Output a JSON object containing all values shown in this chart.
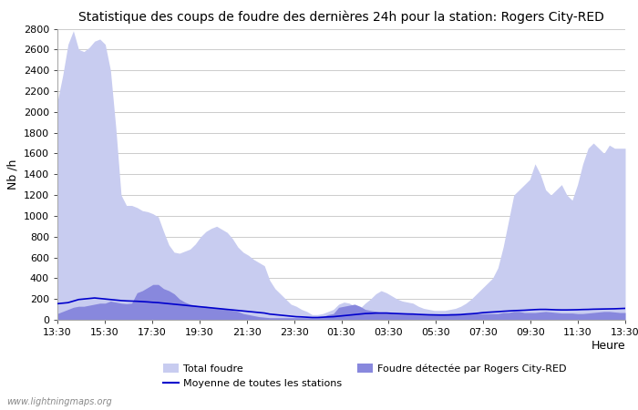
{
  "title": "Statistique des coups de foudre des dernières 24h pour la station: Rogers City-RED",
  "xlabel": "Heure",
  "ylabel": "Nb /h",
  "watermark": "www.lightningmaps.org",
  "ylim": [
    0,
    2800
  ],
  "yticks": [
    0,
    200,
    400,
    600,
    800,
    1000,
    1200,
    1400,
    1600,
    1800,
    2000,
    2200,
    2400,
    2600,
    2800
  ],
  "xtick_labels": [
    "13:30",
    "15:30",
    "17:30",
    "19:30",
    "21:30",
    "23:30",
    "01:30",
    "03:30",
    "05:30",
    "07:30",
    "09:30",
    "11:30",
    "13:30"
  ],
  "color_total": "#c8ccf0",
  "color_local": "#8888dd",
  "color_mean": "#0000cc",
  "total_foudre": [
    2100,
    2350,
    2650,
    2780,
    2600,
    2580,
    2620,
    2680,
    2700,
    2650,
    2400,
    1850,
    1200,
    1100,
    1100,
    1080,
    1050,
    1040,
    1020,
    990,
    850,
    720,
    650,
    640,
    660,
    680,
    730,
    800,
    850,
    880,
    900,
    870,
    840,
    780,
    700,
    650,
    620,
    580,
    550,
    520,
    380,
    300,
    250,
    200,
    150,
    130,
    100,
    80,
    50,
    50,
    60,
    80,
    100,
    150,
    170,
    160,
    130,
    110,
    160,
    200,
    250,
    280,
    260,
    230,
    200,
    180,
    170,
    160,
    130,
    110,
    100,
    90,
    90,
    90,
    100,
    110,
    130,
    160,
    200,
    250,
    300,
    350,
    400,
    500,
    700,
    950,
    1200,
    1250,
    1300,
    1350,
    1500,
    1400,
    1250,
    1200,
    1250,
    1300,
    1200,
    1150,
    1300,
    1500,
    1650,
    1700,
    1650,
    1600,
    1680,
    1650,
    1650,
    1650
  ],
  "local_foudre": [
    60,
    80,
    100,
    120,
    130,
    130,
    140,
    150,
    160,
    160,
    180,
    170,
    160,
    155,
    160,
    260,
    280,
    310,
    340,
    340,
    300,
    280,
    250,
    200,
    170,
    150,
    140,
    130,
    130,
    120,
    115,
    110,
    100,
    90,
    80,
    60,
    50,
    40,
    30,
    25,
    20,
    20,
    20,
    20,
    20,
    20,
    20,
    20,
    20,
    20,
    30,
    50,
    60,
    120,
    130,
    140,
    150,
    130,
    100,
    90,
    80,
    70,
    65,
    65,
    60,
    60,
    60,
    55,
    50,
    50,
    50,
    50,
    50,
    50,
    60,
    60,
    60,
    60,
    60,
    60,
    60,
    60,
    60,
    60,
    70,
    70,
    80,
    80,
    70,
    70,
    70,
    75,
    80,
    75,
    70,
    65,
    65,
    65,
    60,
    60,
    65,
    70,
    75,
    80,
    80,
    75,
    70,
    70
  ],
  "mean_line": [
    155,
    160,
    165,
    180,
    195,
    200,
    205,
    210,
    205,
    200,
    195,
    190,
    185,
    182,
    180,
    178,
    175,
    172,
    168,
    165,
    160,
    155,
    150,
    145,
    140,
    135,
    130,
    125,
    120,
    115,
    110,
    105,
    100,
    95,
    90,
    85,
    80,
    75,
    70,
    65,
    55,
    50,
    45,
    40,
    35,
    30,
    28,
    25,
    22,
    22,
    25,
    28,
    30,
    35,
    40,
    45,
    50,
    55,
    60,
    62,
    65,
    65,
    65,
    62,
    60,
    58,
    56,
    55,
    52,
    50,
    48,
    47,
    46,
    46,
    47,
    48,
    50,
    55,
    58,
    62,
    68,
    72,
    75,
    78,
    82,
    85,
    88,
    90,
    92,
    95,
    98,
    100,
    100,
    98,
    96,
    95,
    95,
    96,
    97,
    99,
    100,
    102,
    103,
    104,
    105,
    106,
    108,
    110
  ]
}
